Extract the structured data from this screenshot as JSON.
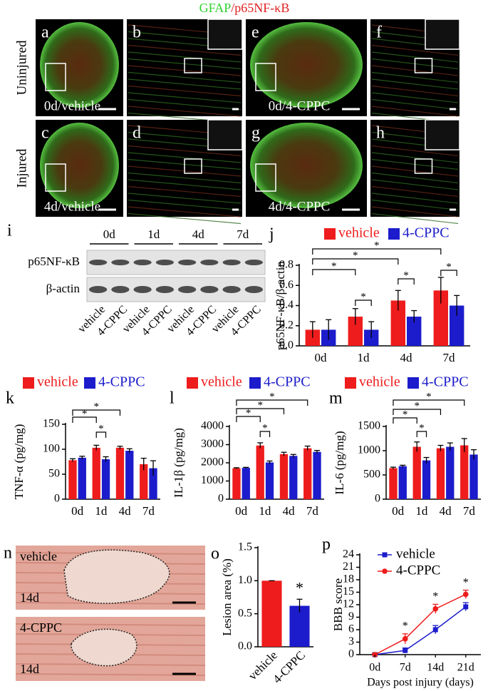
{
  "header": {
    "stains": [
      "GFAP",
      "/p65NF-κB"
    ],
    "stain_colors": [
      "#2fd12f",
      "#e02020"
    ]
  },
  "micrographs": {
    "rows": [
      {
        "label": "Uninjured",
        "panels": [
          {
            "letter": "a",
            "caption": "0d/vehicle"
          },
          {
            "letter": "b"
          },
          {
            "letter": "e",
            "caption": "0d/4-CPPC"
          },
          {
            "letter": "f"
          }
        ]
      },
      {
        "label": "Injured",
        "panels": [
          {
            "letter": "c",
            "caption": "4d/vehicle"
          },
          {
            "letter": "d"
          },
          {
            "letter": "g",
            "caption": "4d/4-CPPC"
          },
          {
            "letter": "h"
          }
        ]
      }
    ]
  },
  "blot": {
    "letter": "i",
    "timepoints": [
      "0d",
      "1d",
      "4d",
      "7d"
    ],
    "proteins": [
      "p65NF-κB",
      "β-actin"
    ],
    "lanes": [
      "vehicle",
      "4-CPPC",
      "vehicle",
      "4-CPPC",
      "vehicle",
      "4-CPPC",
      "vehicle",
      "4-CPPC"
    ]
  },
  "histology": {
    "letter": "n",
    "images": [
      {
        "label": "vehicle",
        "time": "14d"
      },
      {
        "label": "4-CPPC",
        "time": "14d"
      }
    ]
  },
  "chart_data": [
    {
      "type": "bar",
      "panel_label": "j",
      "ylabel": "p65NF-κB/β-actin",
      "categories": [
        "0d",
        "1d",
        "4d",
        "7d"
      ],
      "series": [
        {
          "name": "vehicle",
          "color": "#ee1c1c",
          "values": [
            0.16,
            0.29,
            0.45,
            0.55
          ],
          "errors": [
            0.08,
            0.08,
            0.1,
            0.13
          ]
        },
        {
          "name": "4-CPPC",
          "color": "#1c1ccc",
          "values": [
            0.16,
            0.16,
            0.29,
            0.4
          ],
          "errors": [
            0.1,
            0.08,
            0.06,
            0.1
          ]
        }
      ],
      "ylim": [
        0,
        0.8
      ],
      "yticks": [
        {
          "value": 0,
          "label": "0.0"
        },
        0.2,
        0.4,
        0.6,
        0.8
      ],
      "significance": [
        "*",
        "*",
        "*",
        "*",
        "*",
        "*"
      ]
    },
    {
      "type": "bar",
      "panel_label": "k",
      "ylabel": "TNF-α (pg/mg)",
      "categories": [
        "0d",
        "1d",
        "4d",
        "7d"
      ],
      "series": [
        {
          "name": "vehicle",
          "color": "#ee1c1c",
          "values": [
            78,
            103,
            103,
            70
          ],
          "errors": [
            3,
            5,
            3,
            12
          ]
        },
        {
          "name": "4-CPPC",
          "color": "#1c1ccc",
          "values": [
            83,
            80,
            97,
            62
          ],
          "errors": [
            3,
            5,
            4,
            15
          ]
        }
      ],
      "ylim": [
        0,
        150
      ],
      "yticks": [
        0,
        50,
        100,
        150
      ],
      "significance": [
        "*",
        "*",
        "*"
      ]
    },
    {
      "type": "bar",
      "panel_label": "l",
      "ylabel": "IL-1β (pg/mg)",
      "categories": [
        "0d",
        "1d",
        "4d",
        "7d"
      ],
      "series": [
        {
          "name": "vehicle",
          "color": "#ee1c1c",
          "values": [
            1700,
            2950,
            2480,
            2800
          ],
          "errors": [
            30,
            150,
            100,
            120
          ]
        },
        {
          "name": "4-CPPC",
          "color": "#1c1ccc",
          "values": [
            1720,
            2020,
            2380,
            2600
          ],
          "errors": [
            30,
            80,
            80,
            80
          ]
        }
      ],
      "ylim": [
        0,
        4000
      ],
      "yticks": [
        0,
        1000,
        2000,
        3000,
        4000
      ],
      "significance": [
        "*",
        "*",
        "*",
        "*"
      ]
    },
    {
      "type": "bar",
      "panel_label": "m",
      "ylabel": "IL-6 (pg/mg)",
      "categories": [
        "0d",
        "1d",
        "4d",
        "7d"
      ],
      "series": [
        {
          "name": "vehicle",
          "color": "#ee1c1c",
          "values": [
            640,
            1080,
            1050,
            1110
          ],
          "errors": [
            20,
            100,
            60,
            140
          ]
        },
        {
          "name": "4-CPPC",
          "color": "#1c1ccc",
          "values": [
            680,
            800,
            1080,
            920
          ],
          "errors": [
            20,
            60,
            80,
            100
          ]
        }
      ],
      "ylim": [
        0,
        1500
      ],
      "yticks": [
        0,
        500,
        1000,
        1500
      ],
      "significance": [
        "*",
        "*",
        "*",
        "*"
      ]
    },
    {
      "type": "bar",
      "panel_label": "o",
      "ylabel": "Lesion area (%)",
      "categories": [
        "vehicle",
        "4-CPPC"
      ],
      "values": [
        1.0,
        0.62
      ],
      "errors": [
        0,
        0.1
      ],
      "colors": [
        "#ee1c1c",
        "#1c1ccc"
      ],
      "ylim": [
        0,
        1.5
      ],
      "yticks": [
        {
          "value": 0,
          "label": "0.0"
        },
        0.5,
        {
          "value": 1,
          "label": "1.0"
        },
        1.5
      ],
      "significance": [
        "*"
      ]
    },
    {
      "type": "line",
      "panel_label": "p",
      "ylabel": "BBB score",
      "xlabel": "Days post injury (days)",
      "categories": [
        "0d",
        "7d",
        "14d",
        "21d"
      ],
      "series": [
        {
          "name": "vehicle",
          "color": "#1c1ccc",
          "marker": "square",
          "values": [
            0,
            1,
            6,
            11.5
          ],
          "errors": [
            0.3,
            0.6,
            1,
            1
          ]
        },
        {
          "name": "4-CPPC",
          "color": "#ee1c1c",
          "marker": "circle",
          "values": [
            0,
            3.8,
            11,
            14.5
          ],
          "errors": [
            0.3,
            1.2,
            1.1,
            1
          ]
        }
      ],
      "ylim": [
        0,
        24
      ],
      "yticks": [
        0,
        3,
        6,
        9,
        12,
        15,
        18,
        21,
        24
      ],
      "significance": [
        "*",
        "*",
        "*"
      ]
    }
  ]
}
